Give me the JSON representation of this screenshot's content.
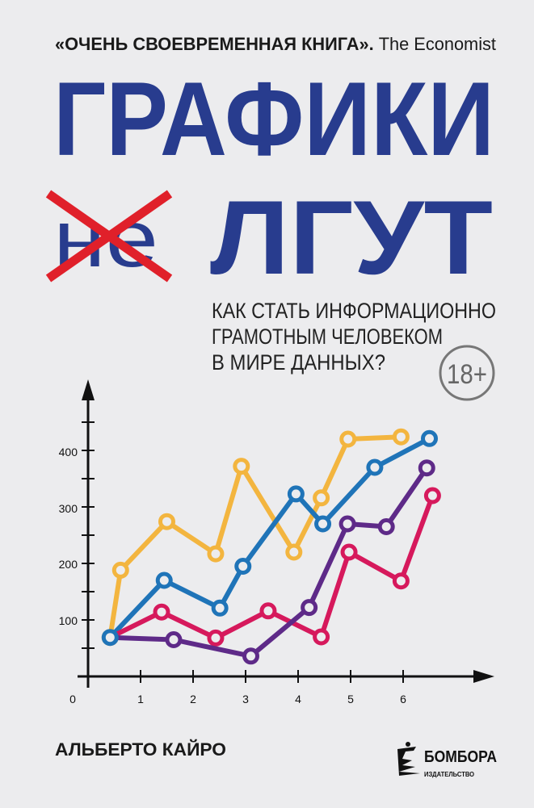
{
  "cover": {
    "tagline_quote": "«ОЧЕНЬ СВОЕВРЕМЕННАЯ КНИГА».",
    "tagline_source": "The Economist",
    "title_line1": "ГРАФИКИ",
    "title_crossed": "не",
    "title_line2": "ЛГУТ",
    "subtitle": [
      "КАК СТАТЬ ИНФОРМАЦИОННО",
      "ГРАМОТНЫМ ЧЕЛОВЕКОМ",
      "В МИРЕ ДАННЫХ?"
    ],
    "age_rating": "18+",
    "author": "АЛЬБЕРТО КАЙРО",
    "publisher": {
      "name": "БОМБОРА",
      "subtitle": "ИЗДАТЕЛЬСТВО"
    },
    "colors": {
      "title": "#283c8e",
      "cross": "#e0202a",
      "background": "#ececee"
    }
  },
  "chart": {
    "type": "line",
    "x_ticks": [
      "0",
      "1",
      "2",
      "3",
      "4",
      "5",
      "6"
    ],
    "y_ticks": [
      "100",
      "200",
      "300",
      "400"
    ],
    "xlim": [
      0,
      7.3
    ],
    "ylim": [
      0,
      500
    ],
    "series": [
      {
        "color": "#f3b53f",
        "points": [
          [
            0.42,
            69
          ],
          [
            0.62,
            188
          ],
          [
            1.5,
            274
          ],
          [
            2.43,
            217
          ],
          [
            2.92,
            372
          ],
          [
            3.92,
            220
          ],
          [
            4.44,
            316
          ],
          [
            4.95,
            420
          ],
          [
            5.96,
            424
          ]
        ]
      },
      {
        "color": "#1f74b8",
        "points": [
          [
            0.42,
            69
          ],
          [
            1.45,
            170
          ],
          [
            2.51,
            121
          ],
          [
            2.95,
            195
          ],
          [
            3.96,
            323
          ],
          [
            4.47,
            270
          ],
          [
            5.46,
            370
          ],
          [
            6.5,
            421
          ]
        ]
      },
      {
        "color": "#d6195c",
        "points": [
          [
            0.42,
            69
          ],
          [
            1.4,
            114
          ],
          [
            2.43,
            68
          ],
          [
            3.43,
            116
          ],
          [
            4.44,
            70
          ],
          [
            4.97,
            220
          ],
          [
            5.96,
            169
          ],
          [
            6.56,
            320
          ]
        ]
      },
      {
        "color": "#5e2a88",
        "points": [
          [
            0.42,
            69
          ],
          [
            1.63,
            65
          ],
          [
            3.1,
            36
          ],
          [
            4.21,
            122
          ],
          [
            4.94,
            270
          ],
          [
            5.68,
            265
          ],
          [
            6.45,
            369
          ]
        ]
      }
    ]
  }
}
